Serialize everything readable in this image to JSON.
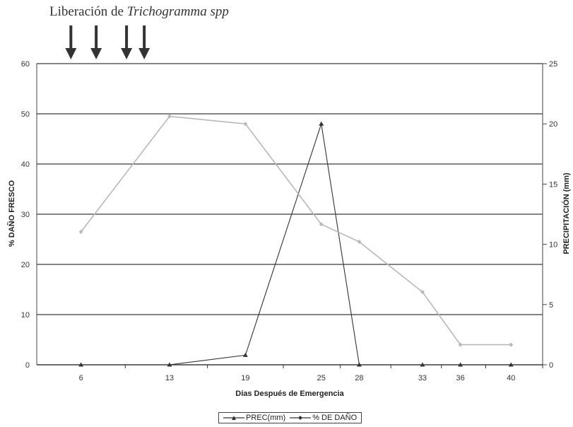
{
  "annotation": {
    "prefix": "Liberación de",
    "species": "Trichogramma",
    "suffix": "spp",
    "arrow_days": [
      5.2,
      7.2,
      9.6,
      11.0
    ]
  },
  "chart_data": {
    "type": "line",
    "xlabel": "Días Después de Emergencia",
    "ylabel_left": "% DAÑO FRESCO",
    "ylabel_right": "PRECIPITACIÓN (mm)",
    "x": [
      6,
      13,
      19,
      25,
      28,
      33,
      36,
      40
    ],
    "x_ticks": [
      "6",
      "13",
      "19",
      "25",
      "28",
      "33",
      "36",
      "40"
    ],
    "ylim_left": [
      0,
      60
    ],
    "ylim_right": [
      0,
      25
    ],
    "y_ticks_left": [
      "0",
      "10",
      "20",
      "30",
      "40",
      "50",
      "60"
    ],
    "y_ticks_right": [
      "0",
      "5",
      "10",
      "15",
      "20",
      "25"
    ],
    "grid": true,
    "legend_position": "bottom-center",
    "series": [
      {
        "name": "PREC(mm)",
        "axis": "right",
        "color": "#333333",
        "marker": "triangle",
        "values": [
          0,
          0,
          0.8,
          20,
          0,
          0,
          0,
          0
        ]
      },
      {
        "name": "% DE DAÑO",
        "axis": "left",
        "color": "#b8b8b8",
        "marker": "diamond",
        "values": [
          26.5,
          49.5,
          48,
          28,
          24.5,
          14.5,
          4,
          4
        ]
      }
    ]
  }
}
